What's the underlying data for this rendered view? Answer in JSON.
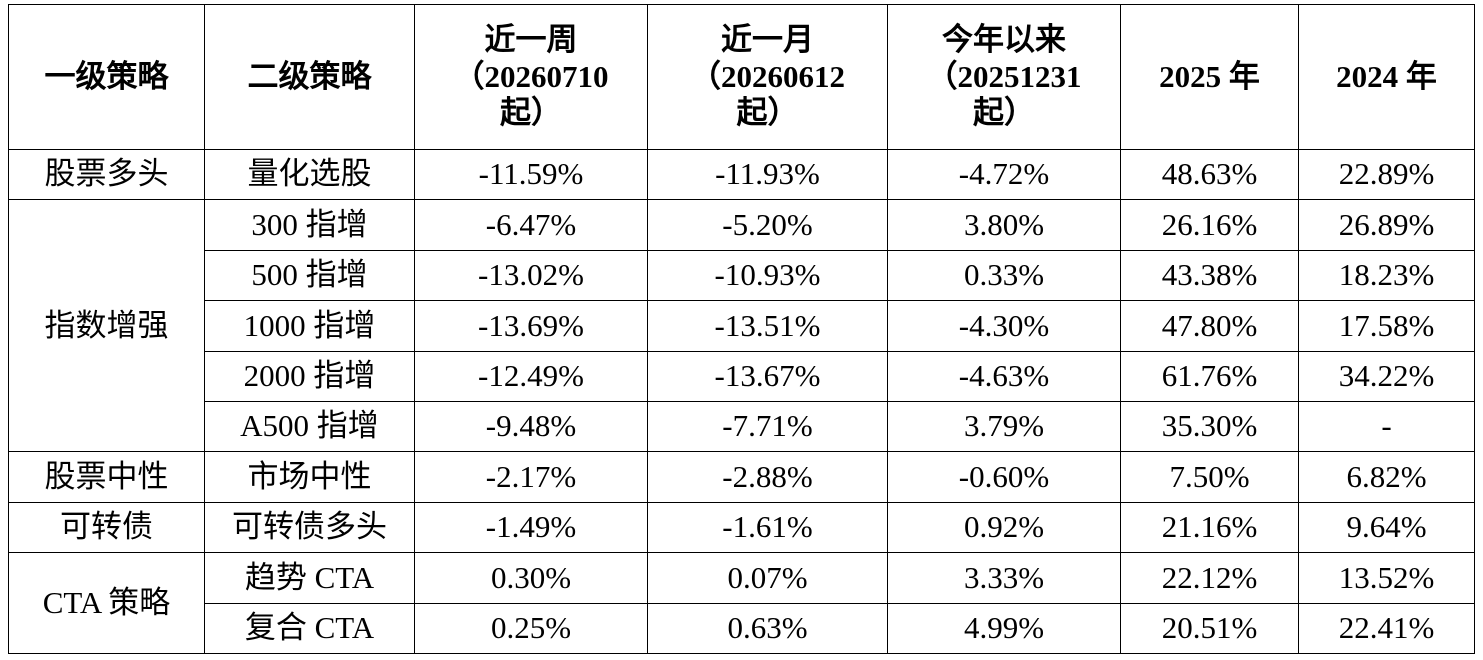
{
  "table": {
    "headers": {
      "level1": "一级策略",
      "level2": "二级策略",
      "week": [
        "近一周",
        "（20260710",
        "起）"
      ],
      "month": [
        "近一月",
        "（20260612",
        "起）"
      ],
      "ytd": [
        "今年以来",
        "（20251231",
        "起）"
      ],
      "y2025": "2025 年",
      "y2024": "2024 年"
    },
    "groups": [
      {
        "name": "股票多头",
        "rows": [
          {
            "strategy": "量化选股",
            "week": "-11.59%",
            "month": "-11.93%",
            "ytd": "-4.72%",
            "y2025": "48.63%",
            "y2024": "22.89%"
          }
        ]
      },
      {
        "name": "指数增强",
        "rows": [
          {
            "strategy": "300 指增",
            "week": "-6.47%",
            "month": "-5.20%",
            "ytd": "3.80%",
            "y2025": "26.16%",
            "y2024": "26.89%"
          },
          {
            "strategy": "500 指增",
            "week": "-13.02%",
            "month": "-10.93%",
            "ytd": "0.33%",
            "y2025": "43.38%",
            "y2024": "18.23%"
          },
          {
            "strategy": "1000 指增",
            "week": "-13.69%",
            "month": "-13.51%",
            "ytd": "-4.30%",
            "y2025": "47.80%",
            "y2024": "17.58%"
          },
          {
            "strategy": "2000 指增",
            "week": "-12.49%",
            "month": "-13.67%",
            "ytd": "-4.63%",
            "y2025": "61.76%",
            "y2024": "34.22%"
          },
          {
            "strategy": "A500 指增",
            "week": "-9.48%",
            "month": "-7.71%",
            "ytd": "3.79%",
            "y2025": "35.30%",
            "y2024": "-"
          }
        ]
      },
      {
        "name": "股票中性",
        "rows": [
          {
            "strategy": "市场中性",
            "week": "-2.17%",
            "month": "-2.88%",
            "ytd": "-0.60%",
            "y2025": "7.50%",
            "y2024": "6.82%"
          }
        ]
      },
      {
        "name": "可转债",
        "rows": [
          {
            "strategy": "可转债多头",
            "week": "-1.49%",
            "month": "-1.61%",
            "ytd": "0.92%",
            "y2025": "21.16%",
            "y2024": "9.64%"
          }
        ]
      },
      {
        "name": "CTA 策略",
        "rows": [
          {
            "strategy": "趋势 CTA",
            "week": "0.30%",
            "month": "0.07%",
            "ytd": "3.33%",
            "y2025": "22.12%",
            "y2024": "13.52%"
          },
          {
            "strategy": "复合 CTA",
            "week": "0.25%",
            "month": "0.63%",
            "ytd": "4.99%",
            "y2025": "20.51%",
            "y2024": "22.41%"
          }
        ]
      }
    ]
  }
}
